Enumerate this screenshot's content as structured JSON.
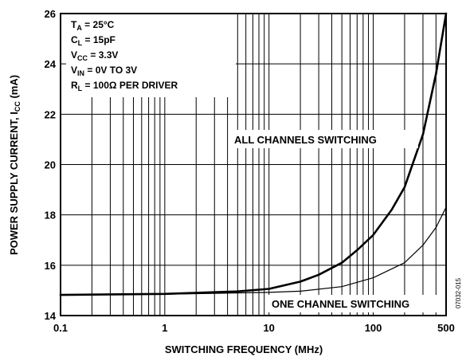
{
  "chart_data": {
    "type": "line",
    "xlabel": "SWITCHING FREQUENCY (MHz)",
    "ylabel": {
      "pre": "POWER SUPPLY CURRENT, I",
      "sub": "CC",
      "post": " (mA)"
    },
    "x_scale": "log",
    "xlim": [
      0.1,
      500
    ],
    "ylim": [
      14,
      26
    ],
    "grid": true,
    "x_ticks": [
      0.1,
      1,
      10,
      100,
      500
    ],
    "x_tick_labels": [
      "0.1",
      "1",
      "10",
      "100",
      "500"
    ],
    "x_minor_grid": [
      0.2,
      0.3,
      0.4,
      0.5,
      0.6,
      0.7,
      0.8,
      0.9,
      2,
      3,
      4,
      5,
      6,
      7,
      8,
      9,
      20,
      30,
      40,
      50,
      60,
      70,
      80,
      90,
      200,
      300,
      400
    ],
    "y_ticks": [
      14,
      16,
      18,
      20,
      22,
      24,
      26
    ],
    "y_tick_labels": [
      "14",
      "16",
      "18",
      "20",
      "22",
      "24",
      "26"
    ],
    "conditions": [
      {
        "pre": "T",
        "sub": "A",
        "post": " = 25°C"
      },
      {
        "pre": "C",
        "sub": "L",
        "post": " = 15pF"
      },
      {
        "pre": "V",
        "sub": "CC",
        "post": " = 3.3V"
      },
      {
        "pre": "V",
        "sub": "IN",
        "post": " = 0V TO 3V"
      },
      {
        "pre": "R",
        "sub": "L",
        "post": " = 100Ω PER DRIVER"
      }
    ],
    "series": [
      {
        "name": "ALL CHANNELS SWITCHING",
        "stroke_width": 2.6,
        "x": [
          0.1,
          1,
          5,
          10,
          20,
          30,
          50,
          70,
          100,
          150,
          200,
          300,
          400,
          500
        ],
        "y": [
          14.82,
          14.86,
          14.96,
          15.06,
          15.35,
          15.62,
          16.1,
          16.6,
          17.2,
          18.2,
          19.1,
          21.2,
          23.6,
          26.0
        ]
      },
      {
        "name": "ONE CHANNEL SWITCHING",
        "stroke_width": 1.2,
        "x": [
          0.1,
          1,
          10,
          20,
          50,
          100,
          200,
          300,
          400,
          500
        ],
        "y": [
          14.82,
          14.85,
          14.92,
          14.97,
          15.15,
          15.5,
          16.1,
          16.8,
          17.5,
          18.3
        ]
      }
    ],
    "watermark": "07032-015"
  }
}
